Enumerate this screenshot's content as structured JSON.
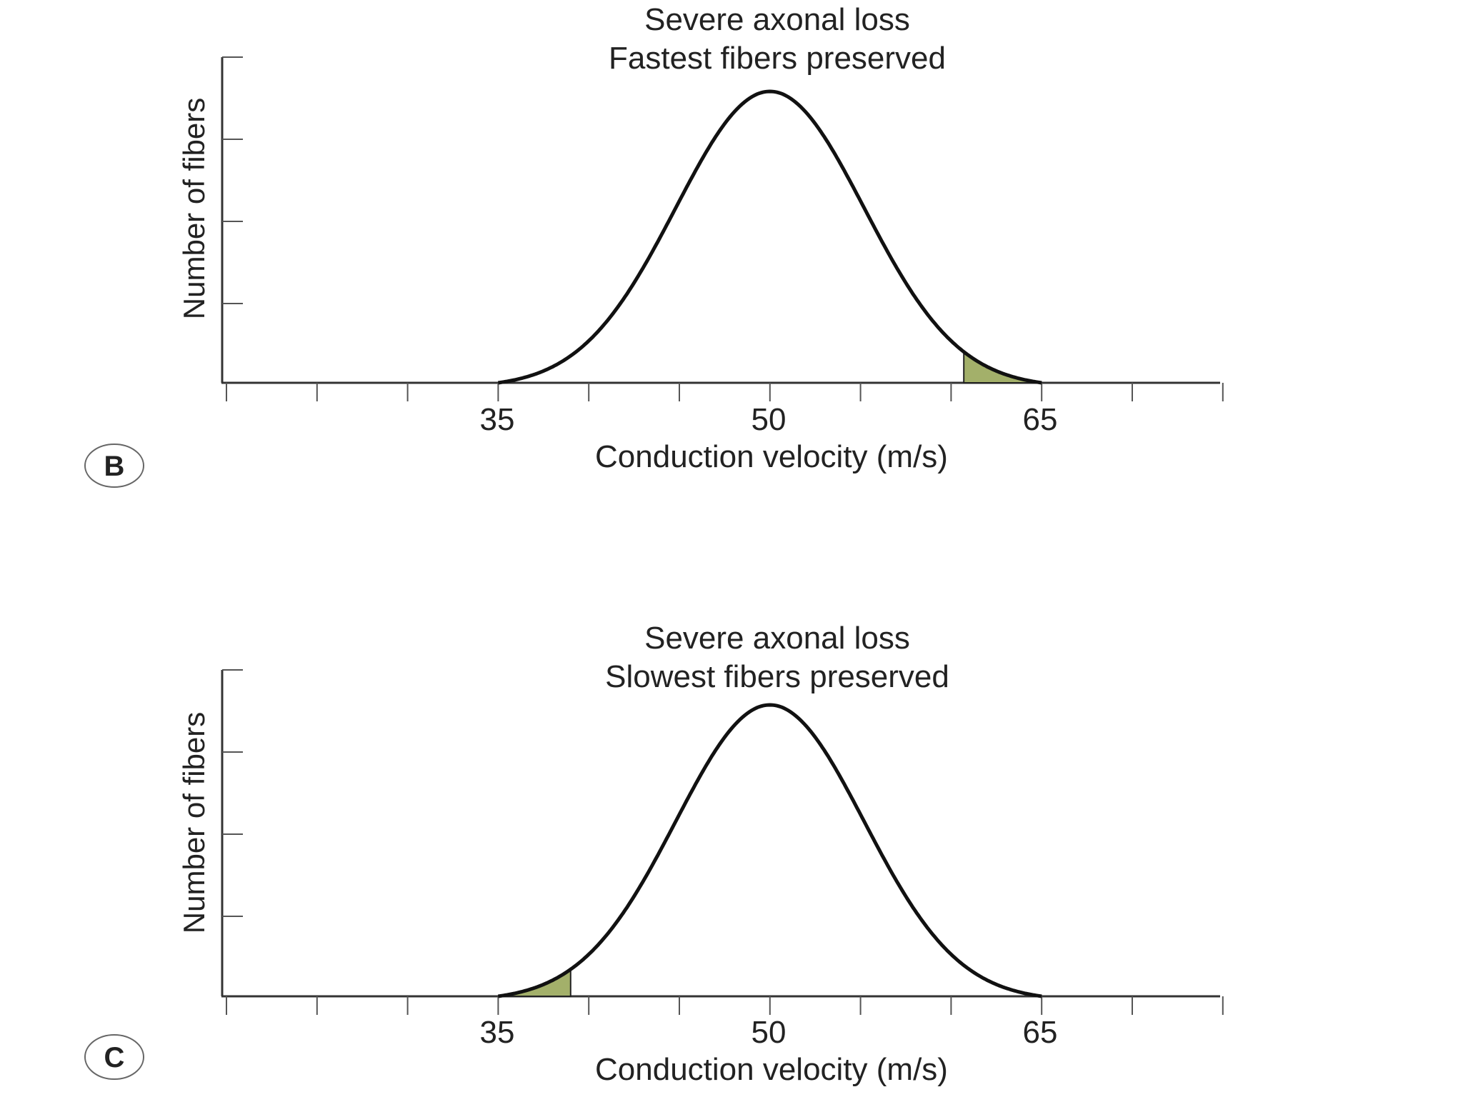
{
  "colors": {
    "curve": "#111111",
    "axis": "#333333",
    "preserved_fill": "#a3b06a",
    "text": "#222222"
  },
  "panels": [
    {
      "letter": "B",
      "title_line1": "Severe axonal loss",
      "title_line2": "Fastest fibers preserved",
      "ylabel": "Number of fibers",
      "xlabel": "Conduction velocity (m/s)",
      "tick_labels": [
        "35",
        "50",
        "65"
      ]
    },
    {
      "letter": "C",
      "title_line1": "Severe axonal loss",
      "title_line2": "Slowest fibers preserved",
      "ylabel": "Number of fibers",
      "xlabel": "Conduction velocity (m/s)",
      "tick_labels": [
        "35",
        "50",
        "65"
      ]
    }
  ],
  "chart_data": [
    {
      "type": "area",
      "panel": "B",
      "title": "Severe axonal loss / Fastest fibers preserved",
      "xlabel": "Conduction velocity (m/s)",
      "ylabel": "Number of fibers",
      "xlim": [
        20,
        75
      ],
      "x_ticks": [
        20,
        25,
        30,
        35,
        40,
        45,
        50,
        55,
        60,
        65,
        70,
        75
      ],
      "x_tick_labels": {
        "35": "35",
        "50": "50",
        "65": "65"
      },
      "y_ticks_count": 4,
      "y_tick_labels": [],
      "series": [
        {
          "name": "Fiber distribution (normal curve)",
          "distribution": "gaussian",
          "mean": 50,
          "range": [
            35,
            65
          ],
          "peak_relative": 1.0
        },
        {
          "name": "Preserved fibers (shaded)",
          "range": [
            60.7,
            65
          ],
          "color": "#a3b06a"
        }
      ],
      "grid": false,
      "legend": null
    },
    {
      "type": "area",
      "panel": "C",
      "title": "Severe axonal loss / Slowest fibers preserved",
      "xlabel": "Conduction velocity (m/s)",
      "ylabel": "Number of fibers",
      "xlim": [
        20,
        75
      ],
      "x_ticks": [
        20,
        25,
        30,
        35,
        40,
        45,
        50,
        55,
        60,
        65,
        70,
        75
      ],
      "x_tick_labels": {
        "35": "35",
        "50": "50",
        "65": "65"
      },
      "y_ticks_count": 4,
      "y_tick_labels": [],
      "series": [
        {
          "name": "Fiber distribution (normal curve)",
          "distribution": "gaussian",
          "mean": 50,
          "range": [
            35,
            65
          ],
          "peak_relative": 1.0
        },
        {
          "name": "Preserved fibers (shaded)",
          "range": [
            35,
            39
          ],
          "color": "#a3b06a"
        }
      ],
      "grid": false,
      "legend": null
    }
  ]
}
